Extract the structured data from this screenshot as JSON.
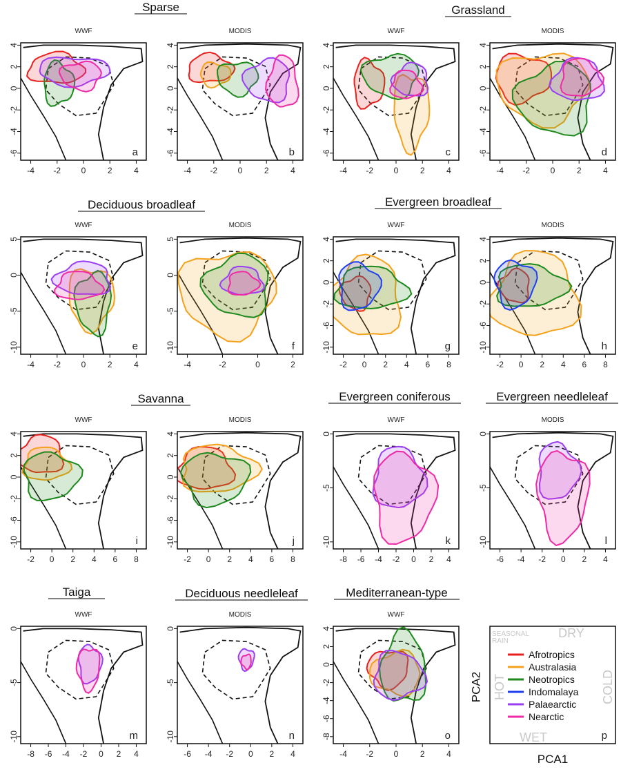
{
  "chart_data": {
    "type": "contour-overlay",
    "groups": [
      {
        "title": "Sparse",
        "panels": [
          "a",
          "b"
        ]
      },
      {
        "title": "Grassland",
        "panels": [
          "c",
          "d"
        ]
      },
      {
        "title": "Deciduous broadleaf",
        "panels": [
          "e",
          "f"
        ]
      },
      {
        "title": "Evergreen broadleaf",
        "panels": [
          "g",
          "h"
        ]
      },
      {
        "title": "Savanna",
        "panels": [
          "i",
          "j"
        ]
      },
      {
        "title": "Evergreen coniferous",
        "panels": [
          "k"
        ]
      },
      {
        "title": "Evergreen needleleaf",
        "panels": [
          "l"
        ]
      },
      {
        "title": "Taiga",
        "panels": [
          "m"
        ]
      },
      {
        "title": "Deciduous needleleaf",
        "panels": [
          "n"
        ]
      },
      {
        "title": "Mediterranean-type",
        "panels": [
          "o"
        ]
      }
    ],
    "panels": [
      {
        "id": "a",
        "dataset": "WWF",
        "xticks": [
          "-4",
          "-2",
          "0",
          "2",
          "4"
        ],
        "yticks": [
          "4",
          "2",
          "0",
          "-2",
          "-4",
          "-6"
        ],
        "regions": [
          "Afrotropics",
          "Neotropics",
          "Palaearctic",
          "Nearctic"
        ]
      },
      {
        "id": "b",
        "dataset": "MODIS",
        "xticks": [
          "-4",
          "-2",
          "0",
          "2",
          "4"
        ],
        "yticks": [
          "4",
          "2",
          "0",
          "-2",
          "-4",
          "-6"
        ],
        "regions": [
          "Afrotropics",
          "Australasia",
          "Neotropics",
          "Palaearctic",
          "Nearctic"
        ]
      },
      {
        "id": "c",
        "dataset": "WWF",
        "xticks": [
          "-4",
          "-2",
          "0",
          "2",
          "4"
        ],
        "yticks": [
          "4",
          "2",
          "0",
          "-2",
          "-4",
          "-6"
        ],
        "regions": [
          "Afrotropics",
          "Australasia",
          "Neotropics",
          "Palaearctic",
          "Nearctic"
        ]
      },
      {
        "id": "d",
        "dataset": "MODIS",
        "xticks": [
          "-4",
          "-2",
          "0",
          "2",
          "4"
        ],
        "yticks": [
          "4",
          "2",
          "0",
          "-2",
          "-4",
          "-6"
        ],
        "regions": [
          "Afrotropics",
          "Australasia",
          "Neotropics",
          "Palaearctic",
          "Nearctic"
        ]
      },
      {
        "id": "e",
        "dataset": "WWF",
        "xticks": [
          "-4",
          "-2",
          "0",
          "2",
          "4"
        ],
        "yticks": [
          "5",
          "0",
          "-5",
          "-10"
        ],
        "regions": [
          "Australasia",
          "Neotropics",
          "Palaearctic",
          "Nearctic"
        ]
      },
      {
        "id": "f",
        "dataset": "MODIS",
        "xticks": [
          "-4",
          "-2",
          "0",
          "2"
        ],
        "yticks": [
          "5",
          "0",
          "-5",
          "-10"
        ],
        "regions": [
          "Australasia",
          "Neotropics",
          "Palaearctic",
          "Nearctic"
        ]
      },
      {
        "id": "g",
        "dataset": "WWF",
        "xticks": [
          "-2",
          "0",
          "2",
          "4",
          "6",
          "8"
        ],
        "yticks": [
          "4",
          "2",
          "0",
          "-2",
          "-6",
          "-10"
        ],
        "regions": [
          "Afrotropics",
          "Australasia",
          "Neotropics",
          "Indomalaya"
        ]
      },
      {
        "id": "h",
        "dataset": "MODIS",
        "xticks": [
          "-2",
          "0",
          "2",
          "4",
          "6",
          "8"
        ],
        "yticks": [
          "4",
          "2",
          "0",
          "-2",
          "-6",
          "-10"
        ],
        "regions": [
          "Afrotropics",
          "Australasia",
          "Neotropics",
          "Indomalaya"
        ]
      },
      {
        "id": "i",
        "dataset": "WWF",
        "xticks": [
          "-2",
          "0",
          "2",
          "4",
          "6",
          "8"
        ],
        "yticks": [
          "4",
          "2",
          "0",
          "-2",
          "-6",
          "-10"
        ],
        "regions": [
          "Afrotropics",
          "Australasia",
          "Neotropics"
        ]
      },
      {
        "id": "j",
        "dataset": "MODIS",
        "xticks": [
          "-2",
          "0",
          "2",
          "4",
          "6",
          "8"
        ],
        "yticks": [
          "4",
          "2",
          "0",
          "-2",
          "-6",
          "-10"
        ],
        "regions": [
          "Afrotropics",
          "Australasia",
          "Neotropics"
        ]
      },
      {
        "id": "k",
        "dataset": "WWF",
        "xticks": [
          "-8",
          "-6",
          "-4",
          "-2",
          "0",
          "2",
          "4"
        ],
        "yticks": [
          "0",
          "-5",
          "-10"
        ],
        "regions": [
          "Palaearctic",
          "Nearctic"
        ]
      },
      {
        "id": "l",
        "dataset": "MODIS",
        "xticks": [
          "-6",
          "-4",
          "-2",
          "0",
          "2",
          "4"
        ],
        "yticks": [
          "0",
          "-5",
          "-10"
        ],
        "regions": [
          "Palaearctic",
          "Nearctic"
        ]
      },
      {
        "id": "m",
        "dataset": "WWF",
        "xticks": [
          "-8",
          "-6",
          "-4",
          "-2",
          "0",
          "2",
          "4"
        ],
        "yticks": [
          "0",
          "-5",
          "-10"
        ],
        "regions": [
          "Palaearctic",
          "Nearctic"
        ]
      },
      {
        "id": "n",
        "dataset": "MODIS",
        "xticks": [
          "-6",
          "-4",
          "-2",
          "0",
          "2",
          "4"
        ],
        "yticks": [
          "0",
          "-5",
          "-10"
        ],
        "regions": [
          "Palaearctic",
          "Nearctic"
        ]
      },
      {
        "id": "o",
        "dataset": "WWF",
        "xticks": [
          "-4",
          "-2",
          "0",
          "2",
          "4"
        ],
        "yticks": [
          "4",
          "2",
          "0",
          "-2",
          "-4",
          "-6",
          "-8"
        ],
        "regions": [
          "Afrotropics",
          "Australasia",
          "Neotropics",
          "Palaearctic"
        ]
      }
    ],
    "legend": {
      "id": "p",
      "items": [
        {
          "name": "Afrotropics",
          "color": "#e8211f"
        },
        {
          "name": "Australasia",
          "color": "#f4a11c"
        },
        {
          "name": "Neotropics",
          "color": "#1e8a1e"
        },
        {
          "name": "Indomalaya",
          "color": "#1f3ff0"
        },
        {
          "name": "Palaearctic",
          "color": "#9a3ff2"
        },
        {
          "name": "Nearctic",
          "color": "#ef2aa6"
        }
      ],
      "seasonal_label": "SEASONAL RAIN",
      "dry_label": "DRY",
      "wet_label": "WET",
      "hot_label": "HOT",
      "cold_label": "COLD",
      "xlabel": "PCA1",
      "ylabel": "PCA2"
    }
  }
}
